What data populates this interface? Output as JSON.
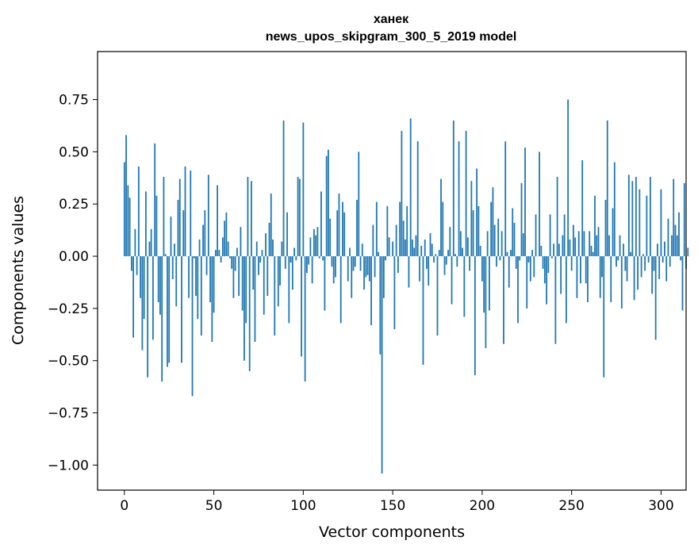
{
  "chart_data": {
    "type": "bar",
    "title": "ханек",
    "subtitle": "news_upos_skipgram_300_5_2019 model",
    "xlabel": "Vector components",
    "ylabel": "Components values",
    "xlim": [
      -15,
      314
    ],
    "ylim": [
      -1.12,
      0.98
    ],
    "xticks": [
      0,
      50,
      100,
      150,
      200,
      250,
      300
    ],
    "xtick_labels": [
      "0",
      "50",
      "100",
      "150",
      "200",
      "250",
      "300"
    ],
    "yticks": [
      0.75,
      0.5,
      0.25,
      0.0,
      -0.25,
      -0.5,
      -0.75,
      -1.0
    ],
    "ytick_labels": [
      "0.75",
      "0.50",
      "0.25",
      "0.00",
      "−0.25",
      "−0.50",
      "−0.75",
      "−1.00"
    ],
    "grid": false,
    "legend": "none",
    "bar_color": "#1f77b4",
    "values": [
      0.45,
      0.58,
      0.34,
      0.28,
      -0.07,
      -0.39,
      0.13,
      -0.09,
      0.43,
      -0.2,
      -0.45,
      -0.3,
      0.31,
      -0.58,
      0.07,
      0.13,
      -0.4,
      0.54,
      0.29,
      -0.22,
      -0.28,
      -0.6,
      0.38,
      0.01,
      -0.53,
      -0.51,
      0.19,
      -0.11,
      0.06,
      -0.24,
      0.27,
      0.37,
      -0.51,
      0.22,
      0.43,
      0.0,
      -0.2,
      0.41,
      -0.67,
      -0.01,
      -0.19,
      -0.3,
      0.08,
      -0.38,
      0.15,
      0.22,
      -0.09,
      0.39,
      -0.22,
      -0.41,
      -0.27,
      0.03,
      0.34,
      0.03,
      -0.03,
      0.09,
      0.17,
      0.21,
      0.07,
      -0.01,
      -0.06,
      -0.2,
      -0.07,
      0.04,
      -0.19,
      0.14,
      -0.26,
      -0.5,
      -0.32,
      0.38,
      -0.55,
      0.36,
      -0.16,
      -0.41,
      0.07,
      -0.09,
      -0.03,
      0.03,
      -0.28,
      0.11,
      -0.19,
      0.16,
      0.3,
      0.08,
      -0.38,
      0.0,
      -0.24,
      -0.14,
      0.07,
      0.65,
      -0.06,
      0.21,
      -0.32,
      -0.03,
      -0.16,
      0.04,
      -0.02,
      0.38,
      0.37,
      -0.48,
      0.64,
      -0.6,
      -0.08,
      -0.04,
      0.09,
      -0.13,
      0.13,
      0.1,
      0.14,
      -0.01,
      0.31,
      -0.02,
      -0.26,
      0.48,
      0.51,
      0.18,
      -0.05,
      -0.13,
      -0.1,
      0.22,
      0.3,
      -0.32,
      0.26,
      0.21,
      0.0,
      -0.12,
      0.04,
      -0.2,
      -0.07,
      -0.05,
      0.27,
      0.5,
      -0.07,
      0.06,
      -0.16,
      -0.1,
      -0.09,
      -0.12,
      -0.33,
      0.15,
      -0.1,
      0.26,
      0.02,
      -0.47,
      -1.04,
      -0.2,
      -0.02,
      0.24,
      0.09,
      0.0,
      0.07,
      -0.35,
      0.15,
      -0.08,
      0.26,
      0.6,
      0.17,
      0.08,
      0.24,
      -0.15,
      0.66,
      0.08,
      0.04,
      0.1,
      0.55,
      -0.12,
      0.05,
      -0.52,
      0.08,
      -0.06,
      -0.14,
      0.11,
      0.06,
      -0.03,
      0.01,
      -0.38,
      0.03,
      0.37,
      0.26,
      -0.09,
      -0.04,
      0.03,
      0.14,
      -0.23,
      0.65,
      0.01,
      -0.05,
      0.55,
      0.12,
      0.04,
      -0.29,
      0.6,
      0.09,
      -0.07,
      0.36,
      0.22,
      -0.57,
      0.42,
      0.24,
      0.05,
      -0.12,
      -0.27,
      -0.44,
      0.12,
      -0.26,
      0.26,
      0.33,
      0.15,
      -0.05,
      0.18,
      -0.02,
      0.12,
      -0.42,
      0.55,
      0.02,
      -0.15,
      0.03,
      0.23,
      0.16,
      -0.06,
      -0.32,
      -0.02,
      0.35,
      0.11,
      0.52,
      -0.25,
      -0.03,
      -0.12,
      0.03,
      -0.1,
      0.2,
      0.0,
      0.5,
      0.05,
      -0.06,
      -0.13,
      -0.23,
      -0.08,
      0.2,
      -0.01,
      0.06,
      -0.42,
      0.38,
      0.06,
      -0.18,
      0.1,
      0.2,
      -0.32,
      0.75,
      0.08,
      -0.07,
      0.15,
      0.09,
      -0.2,
      0.12,
      -0.13,
      0.46,
      0.12,
      -0.13,
      -0.22,
      0.12,
      0.05,
      0.02,
      0.29,
      0.1,
      0.14,
      -0.2,
      -0.1,
      -0.58,
      0.27,
      0.65,
      0.1,
      -0.22,
      0.23,
      0.45,
      -0.05,
      -0.02,
      0.1,
      -0.25,
      0.06,
      -0.07,
      -0.12,
      0.39,
      0.02,
      0.36,
      -0.21,
      0.38,
      -0.16,
      0.32,
      -0.1,
      0.01,
      -0.07,
      0.29,
      -0.03,
      0.38,
      -0.18,
      -0.07,
      -0.4,
      0.06,
      -0.11,
      0.32,
      -0.03,
      0.07,
      -0.12,
      0.18,
      -0.05,
      0.1,
      0.37,
      0.15,
      0.1,
      0.21,
      -0.02,
      -0.26,
      0.35,
      -0.06,
      0.04
    ]
  }
}
